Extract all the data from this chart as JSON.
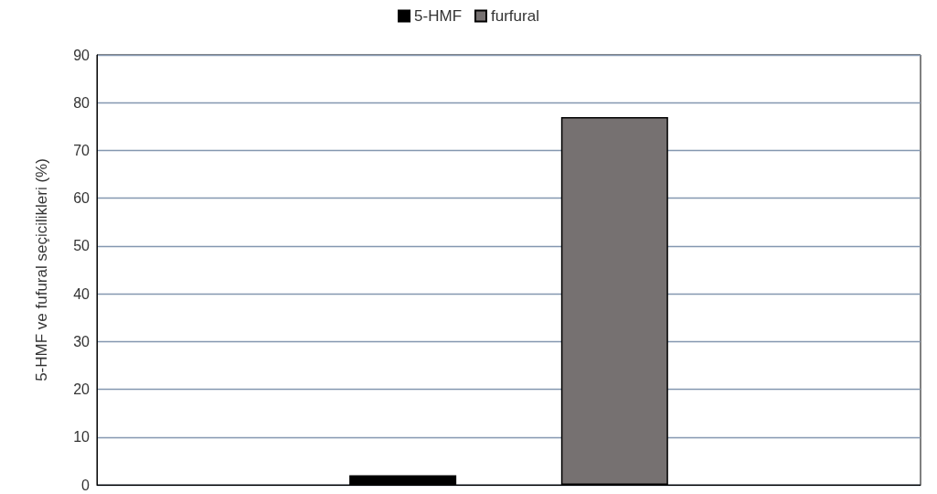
{
  "chart_data": {
    "type": "bar",
    "ylabel": "5-HMF ve fufural seçicilikleri (%)",
    "categories": [
      null
    ],
    "series": [
      {
        "name": "5-HMF",
        "color": "#000000",
        "values": [
          2
        ]
      },
      {
        "name": "furfural",
        "color": "#767171",
        "values": [
          77
        ]
      }
    ],
    "ylim": [
      0,
      90
    ],
    "yticks": [
      0,
      10,
      20,
      30,
      40,
      50,
      60,
      70,
      80,
      90
    ],
    "grid": "y",
    "legend": "top"
  }
}
